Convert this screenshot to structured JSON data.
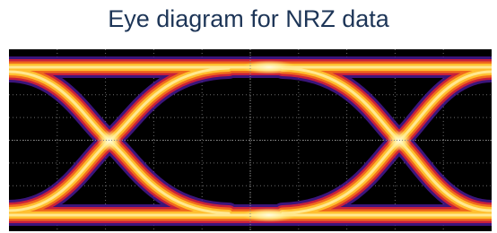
{
  "title": "Eye diagram for NRZ data"
}
